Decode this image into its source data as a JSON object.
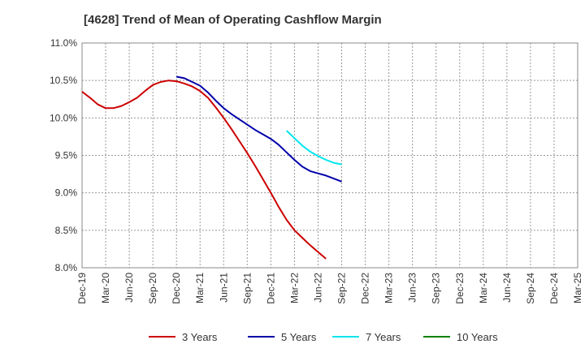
{
  "chart_data": {
    "type": "line",
    "title": "[4628]  Trend of Mean of Operating Cashflow Margin",
    "xlabel": "",
    "ylabel": "",
    "ylim": [
      8.0,
      11.0
    ],
    "y_ticks": [
      8.0,
      8.5,
      9.0,
      9.5,
      10.0,
      10.5,
      11.0
    ],
    "y_tick_labels": [
      "8.0%",
      "8.5%",
      "9.0%",
      "9.5%",
      "10.0%",
      "10.5%",
      "11.0%"
    ],
    "x_tick_labels": [
      "Dec-19",
      "Mar-20",
      "Jun-20",
      "Sep-20",
      "Dec-20",
      "Mar-21",
      "Jun-21",
      "Sep-21",
      "Dec-21",
      "Mar-22",
      "Jun-22",
      "Sep-22",
      "Dec-22",
      "Mar-23",
      "Jun-23",
      "Sep-23",
      "Dec-23",
      "Mar-24",
      "Jun-24",
      "Sep-24",
      "Dec-24",
      "Mar-25"
    ],
    "n_quarters": 21,
    "grid": true,
    "legend_position": "bottom",
    "series": [
      {
        "name": "3 Years",
        "color": "#cc0000",
        "start_index": 0,
        "values": [
          10.35,
          10.27,
          10.18,
          10.13,
          10.13,
          10.16,
          10.21,
          10.27,
          10.36,
          10.44,
          10.48,
          10.5,
          10.49,
          10.46,
          10.42,
          10.36,
          10.27,
          10.14,
          10.0,
          9.85,
          9.69,
          9.53,
          9.36,
          9.18,
          9.0,
          8.81,
          8.64,
          8.5,
          8.4,
          8.3,
          8.21,
          8.12
        ]
      },
      {
        "name": "5 Years",
        "color": "#0000aa",
        "start_index": 12,
        "values": [
          10.55,
          10.53,
          10.48,
          10.43,
          10.34,
          10.23,
          10.13,
          10.05,
          9.98,
          9.91,
          9.84,
          9.78,
          9.72,
          9.64,
          9.54,
          9.44,
          9.35,
          9.29,
          9.26,
          9.23,
          9.19,
          9.15
        ]
      },
      {
        "name": "7 Years",
        "color": "#00e5ee",
        "start_index": 26,
        "values": [
          9.83,
          9.73,
          9.63,
          9.55,
          9.49,
          9.44,
          9.4,
          9.38
        ]
      },
      {
        "name": "10 Years",
        "color": "#008000",
        "start_index": 0,
        "values": []
      }
    ]
  }
}
